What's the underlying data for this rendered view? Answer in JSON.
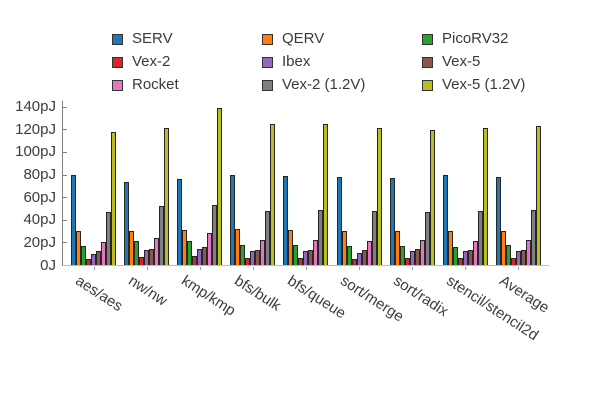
{
  "chart_data": {
    "type": "bar",
    "title": "",
    "xlabel": "",
    "ylabel": "",
    "unit": "pJ",
    "grid": false,
    "legend_position": "top",
    "ylim": [
      0,
      145
    ],
    "yticks": [
      {
        "value": 0,
        "label": "0J"
      },
      {
        "value": 20,
        "label": "20pJ"
      },
      {
        "value": 40,
        "label": "40pJ"
      },
      {
        "value": 60,
        "label": "60pJ"
      },
      {
        "value": 80,
        "label": "80pJ"
      },
      {
        "value": 100,
        "label": "100pJ"
      },
      {
        "value": 120,
        "label": "120pJ"
      },
      {
        "value": 140,
        "label": "140pJ"
      }
    ],
    "categories": [
      "aes/aes",
      "nw/nw",
      "kmp/kmp",
      "bfs/bulk",
      "bfs/queue",
      "sort/merge",
      "sort/radix",
      "stencil/stencil2d",
      "Average"
    ],
    "series": [
      {
        "name": "SERV",
        "color": "#1f77b4",
        "values": [
          80,
          73,
          76,
          80,
          79,
          78,
          77,
          80,
          78
        ]
      },
      {
        "name": "QERV",
        "color": "#ff7f0e",
        "values": [
          30,
          30,
          31,
          32,
          31,
          30,
          30,
          30,
          30
        ]
      },
      {
        "name": "PicoRV32",
        "color": "#2ca02c",
        "values": [
          17,
          21,
          21,
          18,
          18,
          17,
          17,
          16,
          18
        ]
      },
      {
        "name": "Vex-2",
        "color": "#d62728",
        "values": [
          5,
          7,
          8,
          6,
          6,
          5,
          6,
          6,
          6
        ]
      },
      {
        "name": "Ibex",
        "color": "#9467bd",
        "values": [
          10,
          13,
          14,
          12,
          12,
          11,
          12,
          12,
          12
        ]
      },
      {
        "name": "Vex-5",
        "color": "#8c564b",
        "values": [
          12,
          14,
          16,
          13,
          13,
          13,
          14,
          13,
          13
        ]
      },
      {
        "name": "Rocket",
        "color": "#e377c2",
        "values": [
          20,
          24,
          28,
          22,
          22,
          21,
          22,
          21,
          22
        ]
      },
      {
        "name": "Vex-2 (1.2V)",
        "color": "#7f7f7f",
        "values": [
          47,
          52,
          53,
          48,
          49,
          48,
          47,
          48,
          49
        ]
      },
      {
        "name": "Vex-5 (1.2V)",
        "color": "#bcbd22",
        "values": [
          118,
          121,
          139,
          125,
          125,
          121,
          119,
          121,
          123
        ]
      }
    ]
  }
}
